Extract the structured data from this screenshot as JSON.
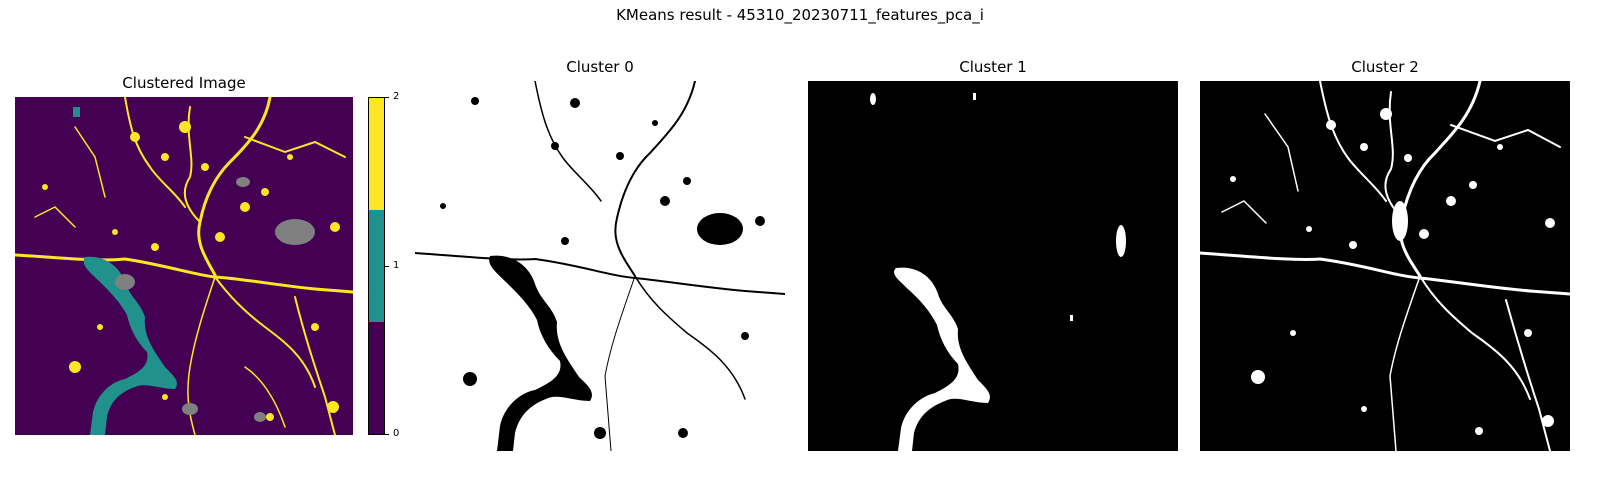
{
  "suptitle": "KMeans result - 45310_20230711_features_pca_i",
  "chart_data": [
    {
      "type": "heatmap",
      "title": "Clustered Image",
      "colorbar": {
        "ticks": [
          "0",
          "1",
          "2"
        ],
        "range": [
          0,
          2
        ]
      },
      "classes": [
        {
          "value": 0,
          "color": "#440154"
        },
        {
          "value": 1,
          "color": "#21918c"
        },
        {
          "value": 2,
          "color": "#fde725"
        }
      ],
      "nodata_color": "#808080",
      "axes": "off"
    },
    {
      "type": "heatmap",
      "title": "Cluster 0",
      "colormap": "binary mask",
      "axes": "off"
    },
    {
      "type": "heatmap",
      "title": "Cluster 1",
      "colormap": "binary mask",
      "axes": "off"
    },
    {
      "type": "heatmap",
      "title": "Cluster 2",
      "colormap": "binary mask",
      "axes": "off"
    }
  ]
}
